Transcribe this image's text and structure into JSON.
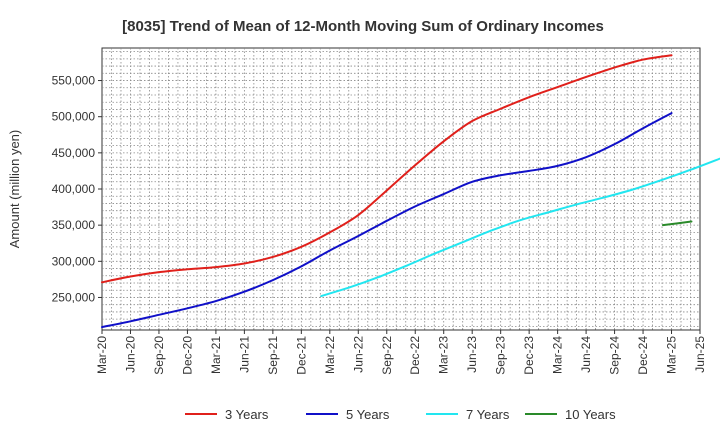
{
  "chart_data": {
    "type": "line",
    "title": "[8035]  Trend of Mean of 12-Month Moving Sum of Ordinary Incomes",
    "xlabel": "",
    "ylabel": "Amount (million yen)",
    "x_tick_labels": [
      "Mar-20",
      "Jun-20",
      "Sep-20",
      "Dec-20",
      "Mar-21",
      "Jun-21",
      "Sep-21",
      "Dec-21",
      "Mar-22",
      "Jun-22",
      "Sep-22",
      "Dec-22",
      "Mar-23",
      "Jun-23",
      "Sep-23",
      "Dec-23",
      "Mar-24",
      "Jun-24",
      "Sep-24",
      "Dec-24",
      "Mar-25",
      "Jun-25"
    ],
    "y_tick_values": [
      250000,
      300000,
      350000,
      400000,
      450000,
      500000,
      550000
    ],
    "y_tick_labels": [
      "250,000",
      "300,000",
      "350,000",
      "400,000",
      "450,000",
      "500,000",
      "550,000"
    ],
    "ylim": [
      205000,
      595000
    ],
    "grid": true,
    "legend_position": "bottom",
    "series": [
      {
        "name": "3 Years",
        "color": "#e0201b",
        "start_index": 0,
        "values": [
          271000,
          279000,
          285000,
          289000,
          292000,
          297000,
          306000,
          320000,
          340000,
          364000,
          398000,
          433000,
          466000,
          494000,
          511000,
          527000,
          541000,
          555000,
          568000,
          579000,
          585000
        ]
      },
      {
        "name": "5 Years",
        "color": "#1010c8",
        "start_index": 0,
        "values": [
          209000,
          217000,
          226000,
          235000,
          245000,
          258000,
          274000,
          293000,
          315000,
          335000,
          356000,
          376000,
          393000,
          410000,
          419000,
          425000,
          432000,
          444000,
          462000,
          484000,
          505000
        ]
      },
      {
        "name": "7 Years",
        "color": "#22e6f0",
        "start_index": 7.7,
        "values": [
          252000,
          264000,
          278000,
          294000,
          311000,
          327000,
          343000,
          357000,
          368000,
          379000,
          389000,
          400000,
          413000,
          427000,
          442000
        ]
      },
      {
        "name": "10 Years",
        "color": "#2a8a2a",
        "start_index": 19.7,
        "values": [
          350000,
          355000
        ]
      }
    ]
  }
}
